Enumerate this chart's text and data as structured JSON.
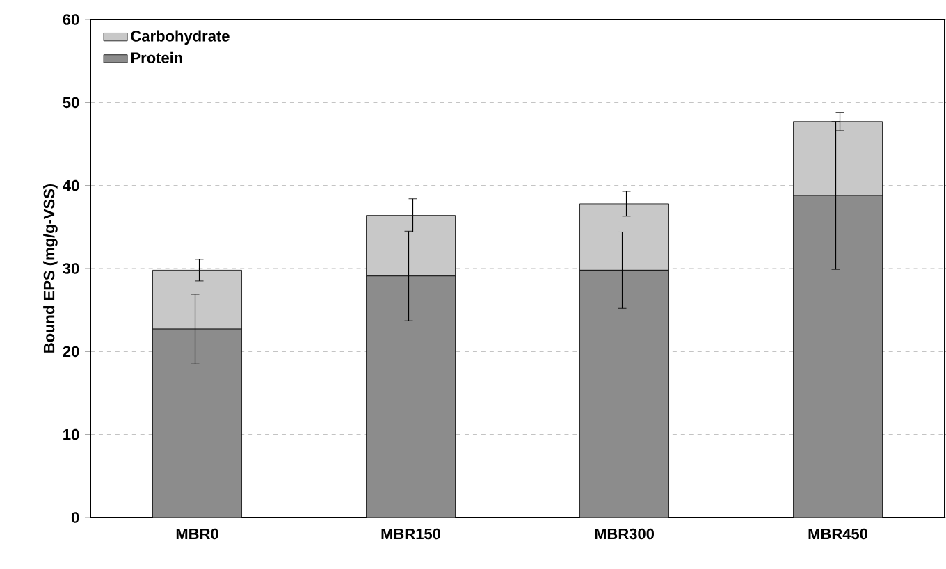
{
  "chart_data": {
    "type": "bar",
    "stacked": true,
    "ylabel": "Bound EPS (mg/g-VSS)",
    "categories": [
      "MBR0",
      "MBR150",
      "MBR300",
      "MBR450"
    ],
    "series": [
      {
        "name": "Protein",
        "color": "#8c8c8c",
        "values": [
          22.7,
          29.1,
          29.8,
          38.8
        ],
        "errors": [
          4.2,
          5.4,
          4.6,
          8.9
        ]
      },
      {
        "name": "Carbohydrate",
        "color": "#c8c8c8",
        "values": [
          7.1,
          7.3,
          8.0,
          8.9
        ],
        "errors": [
          1.3,
          2.0,
          1.5,
          1.1
        ]
      }
    ],
    "ylim": [
      0,
      60
    ],
    "yticks": [
      0,
      10,
      20,
      30,
      40,
      50,
      60
    ],
    "grid": "y",
    "legend": "top left"
  }
}
